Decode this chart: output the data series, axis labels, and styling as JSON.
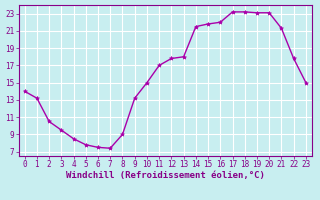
{
  "x": [
    0,
    1,
    2,
    3,
    4,
    5,
    6,
    7,
    8,
    9,
    10,
    11,
    12,
    13,
    14,
    15,
    16,
    17,
    18,
    19,
    20,
    21,
    22,
    23
  ],
  "y": [
    14.0,
    13.2,
    10.5,
    9.5,
    8.5,
    7.8,
    7.5,
    7.4,
    9.0,
    13.2,
    15.0,
    17.0,
    17.8,
    18.0,
    21.5,
    21.8,
    22.0,
    23.2,
    23.2,
    23.1,
    23.1,
    21.3,
    17.8,
    15.0
  ],
  "line_color": "#aa00aa",
  "marker": "*",
  "marker_size": 3,
  "bg_color": "#c8eef0",
  "grid_color": "#ffffff",
  "xlabel": "Windchill (Refroidissement éolien,°C)",
  "xlim": [
    -0.5,
    23.5
  ],
  "ylim": [
    6.5,
    24.0
  ],
  "yticks": [
    7,
    9,
    11,
    13,
    15,
    17,
    19,
    21,
    23
  ],
  "xticks": [
    0,
    1,
    2,
    3,
    4,
    5,
    6,
    7,
    8,
    9,
    10,
    11,
    12,
    13,
    14,
    15,
    16,
    17,
    18,
    19,
    20,
    21,
    22,
    23
  ],
  "tick_label_size": 5.5,
  "xlabel_size": 6.5,
  "axis_color": "#880088",
  "spine_color": "#880088",
  "linewidth": 1.0
}
